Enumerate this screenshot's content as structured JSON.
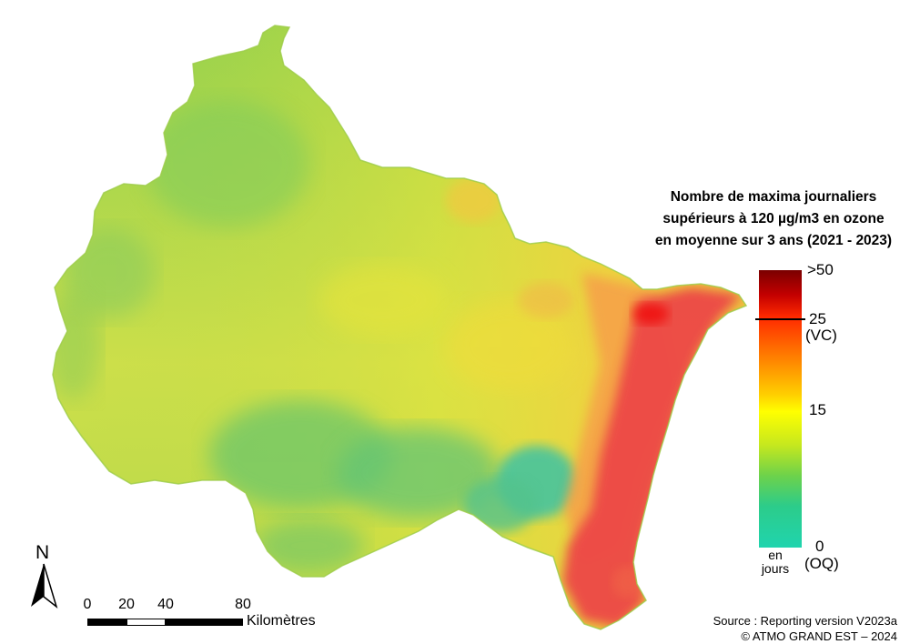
{
  "legend": {
    "title_lines": [
      "Nombre de maxima journaliers",
      "supérieurs à 120 µg/m3 en ozone",
      "en moyenne sur 3 ans (2021 - 2023)"
    ],
    "ticks": {
      "max": ">50",
      "vc_value": "25",
      "vc_label": "(VC)",
      "mid": "15",
      "zero": "0",
      "oq_label": "(OQ)"
    },
    "unit": "en jours",
    "color_stops": [
      "#7a0000",
      "#c40000",
      "#ff2a00",
      "#ff9a00",
      "#ffd000",
      "#ffff00",
      "#c6e81e",
      "#6ed24a",
      "#2ccc8a",
      "#20d4ae"
    ]
  },
  "north_arrow": {
    "label": "N",
    "icon": "north-arrow-icon"
  },
  "scale_bar": {
    "ticks": [
      "0",
      "20",
      "40",
      "80"
    ],
    "unit": "Kilomètres"
  },
  "source": {
    "line1": "Source : Reporting version V2023a",
    "line2": "© ATMO GRAND EST – 2024"
  },
  "map": {
    "colors": {
      "outline": "#a8cf3c",
      "green": "#6cc85a",
      "light_green": "#b2d840",
      "yellow": "#e2e63a",
      "orange": "#f4a64a",
      "red": "#ee4848",
      "teal": "#3cc6a6"
    }
  }
}
